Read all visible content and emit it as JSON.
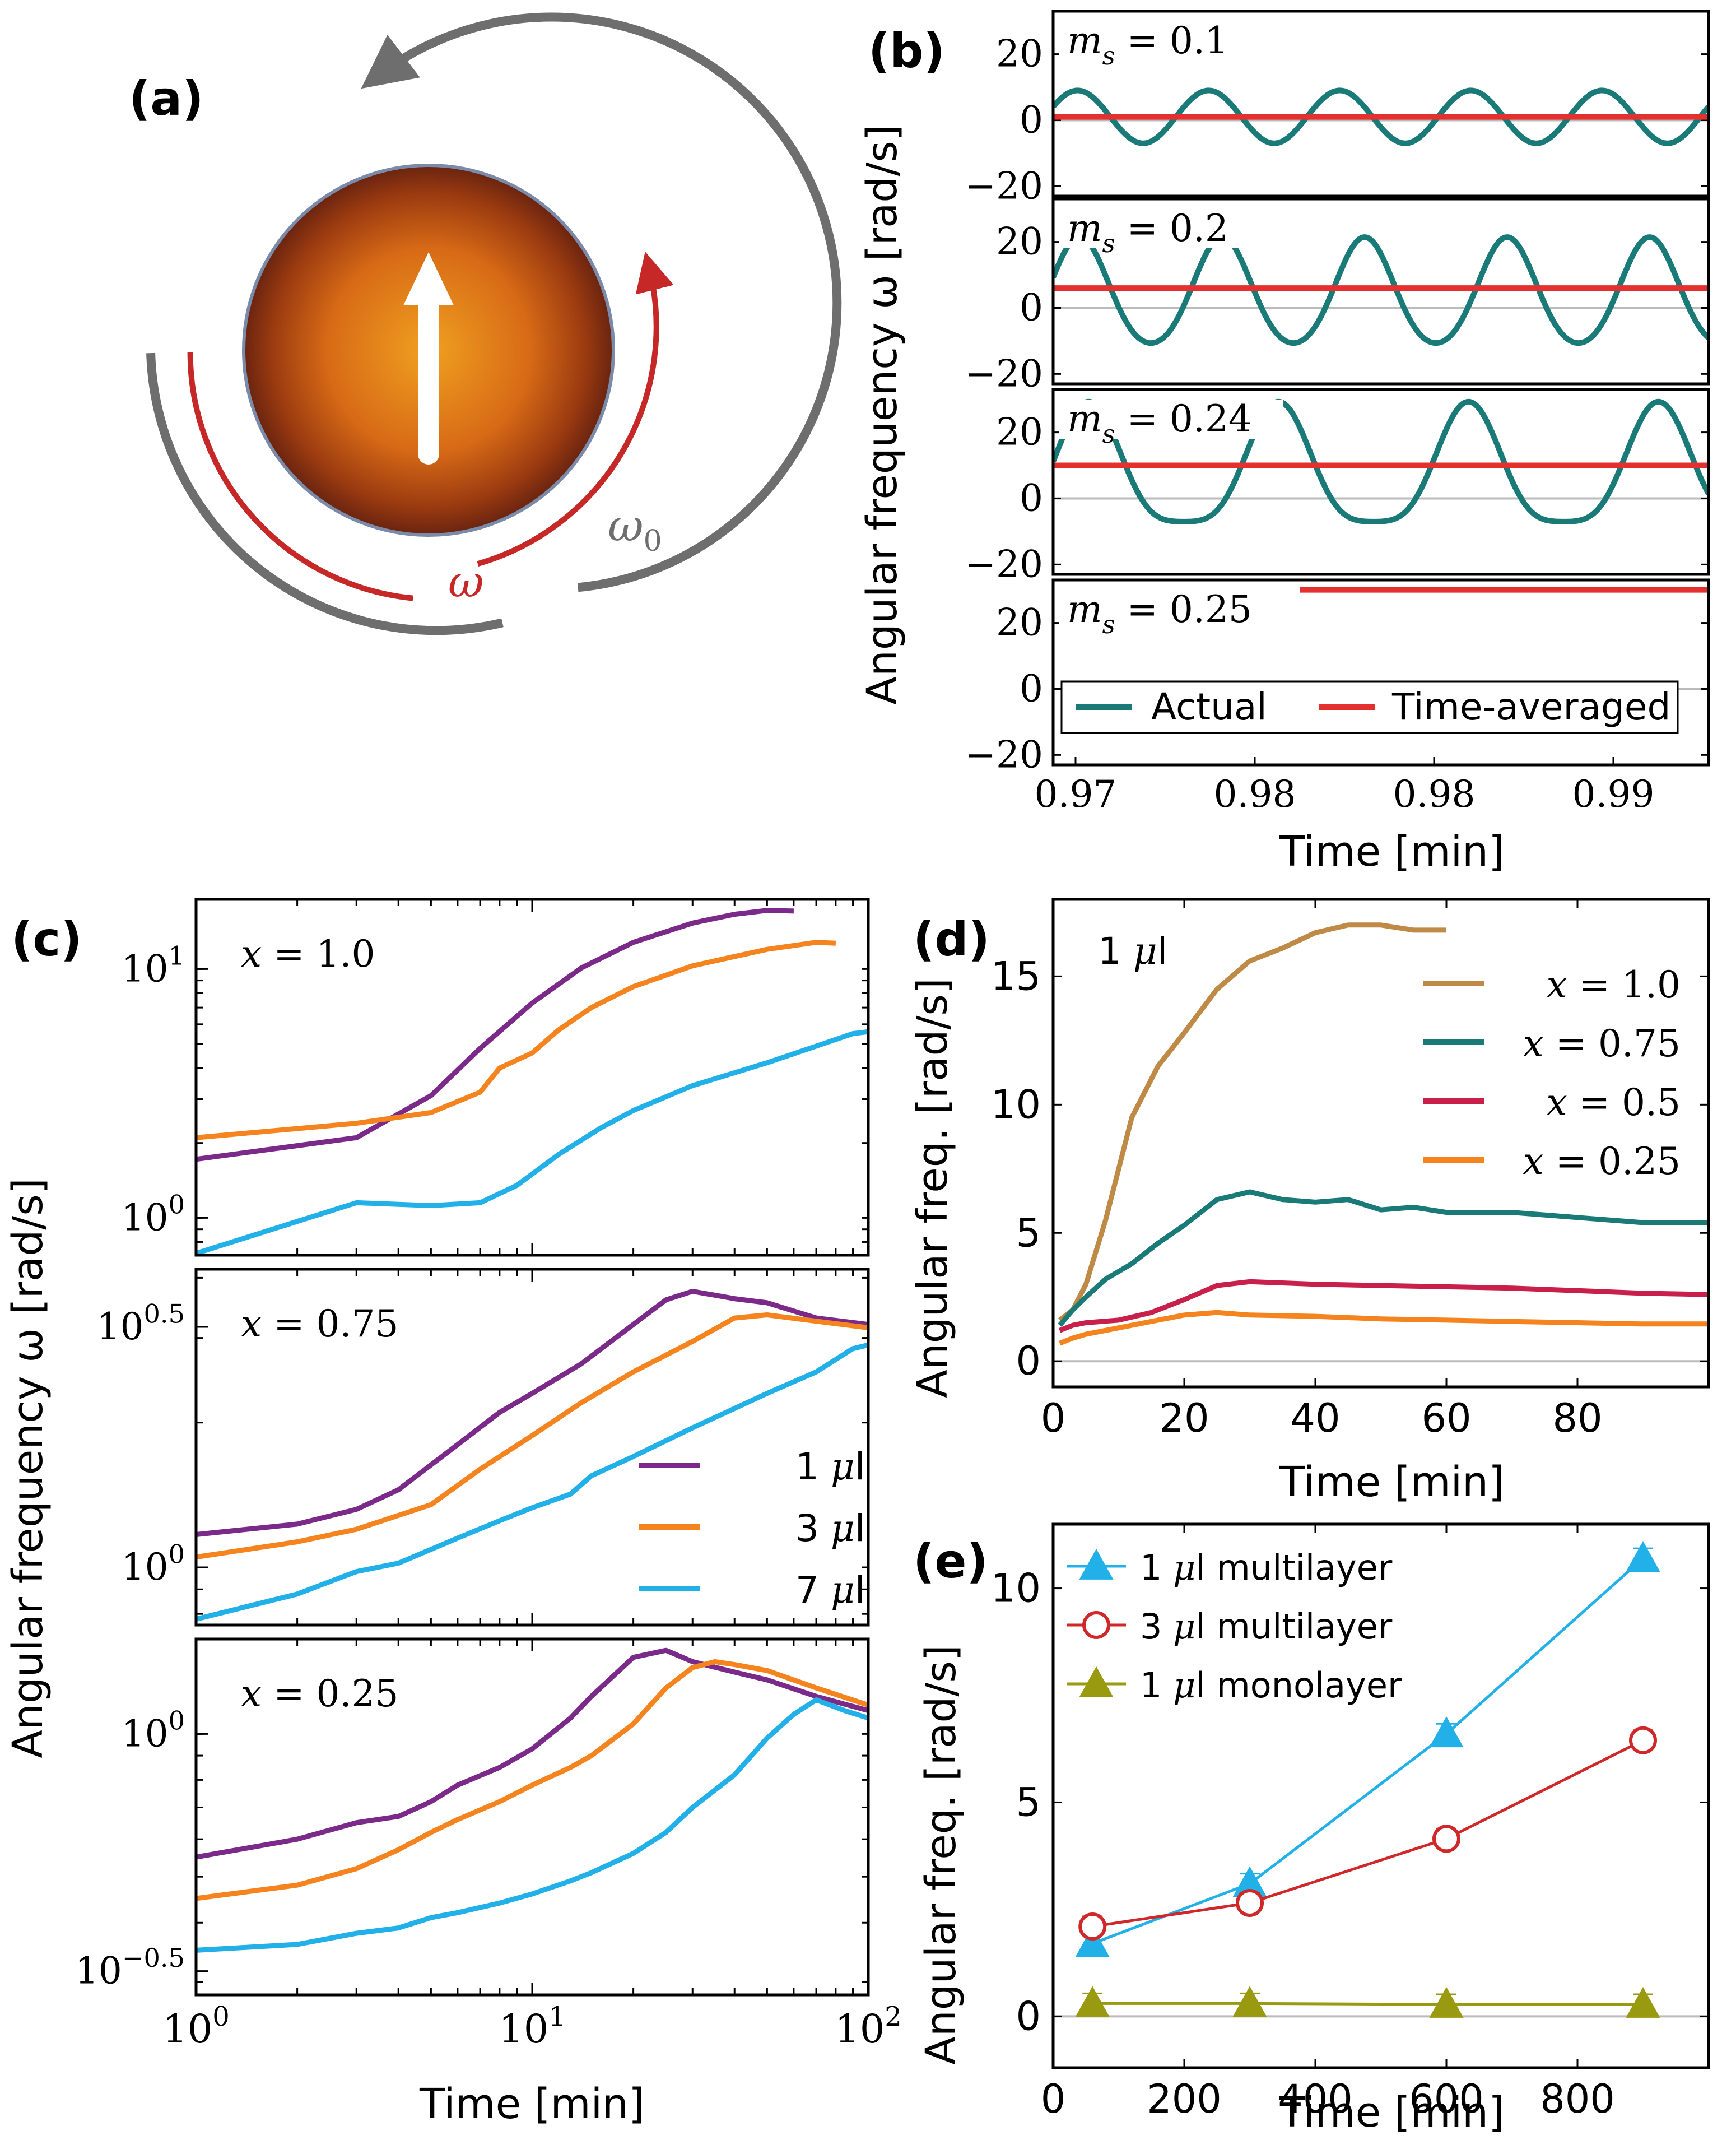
{
  "figure": {
    "panel_labels": {
      "a": "(a)",
      "b": "(b)",
      "c": "(c)",
      "d": "(d)",
      "e": "(e)"
    }
  },
  "panel_a": {
    "omega_label": "ω",
    "omega0_label": "ω",
    "omega0_sub": "0",
    "colors": {
      "omega": "#c62828",
      "omega0": "#6e6e6e",
      "droplet_center": "#f0a020",
      "droplet_edge": "#6a2410"
    }
  },
  "chart_data": [
    {
      "id": "b",
      "type": "line",
      "ylabel": "Angular frequency ω [rad/s]",
      "xlabel": "Time [min]",
      "x_tick_labels": [
        "0.97",
        "0.98",
        "0.98",
        "0.99"
      ],
      "y_ticks": [
        -20,
        0,
        20
      ],
      "y_tick_labels": [
        "−20",
        "0",
        "20"
      ],
      "ylim": [
        -23,
        33
      ],
      "legend": {
        "placement": "bottom",
        "entries": [
          "Actual",
          "Time-averaged"
        ]
      },
      "colors": {
        "actual": "#1a7a78",
        "average": "#e53030"
      },
      "subplots": [
        {
          "label": "m_s = 0.1",
          "ms": "0.1",
          "actual": {
            "mean": 1,
            "amp": 8,
            "sharp": 0,
            "periods": 5
          },
          "average": 1
        },
        {
          "label": "m_s = 0.2",
          "ms": "0.2",
          "actual": {
            "mean": 4,
            "amp": 17,
            "sharp": 0.5,
            "periods": 4.6
          },
          "average": 6
        },
        {
          "label": "m_s = 0.24",
          "ms": "0.24",
          "actual": {
            "mean": 7,
            "amp": 21,
            "sharp": 1.3,
            "periods": 3.45
          },
          "average": 10
        },
        {
          "label": "m_s = 0.25",
          "ms": "0.25",
          "actual": null,
          "average": 30
        }
      ]
    },
    {
      "id": "c",
      "type": "line",
      "scale": "log-log",
      "ylabel": "Angular frequency ω [rad/s]",
      "xlabel": "Time [min]",
      "xlim": [
        1,
        100
      ],
      "x_tick_labels": [
        {
          "base": "10",
          "exp": "0"
        },
        {
          "base": "10",
          "exp": "1"
        },
        {
          "base": "10",
          "exp": "2"
        }
      ],
      "legend": {
        "placement": "center-right",
        "entries": [
          "1 μl",
          "3 μl",
          "7 μl"
        ]
      },
      "colors": {
        "1ul": "#7b2a8a",
        "3ul": "#f5841f",
        "7ul": "#21b0e8"
      },
      "subplots": [
        {
          "label": "x = 1.0",
          "x_value": "1.0",
          "ylim_log10": [
            -0.15,
            1.28
          ],
          "y_tick_labels": [
            {
              "value": 0,
              "base": "10",
              "exp": "0"
            },
            {
              "value": 1,
              "base": "10",
              "exp": "1"
            }
          ],
          "series": [
            {
              "name": "1 μl",
              "x": [
                1,
                3,
                5,
                7,
                10,
                14,
                20,
                30,
                40,
                50,
                60
              ],
              "y": [
                1.72,
                2.1,
                3.1,
                4.8,
                7.3,
                10.1,
                12.8,
                15.3,
                16.6,
                17.2,
                17.1
              ]
            },
            {
              "name": "3 μl",
              "x": [
                1,
                3,
                5,
                7,
                8,
                10,
                12,
                15,
                20,
                30,
                50,
                70,
                80
              ],
              "y": [
                2.1,
                2.4,
                2.65,
                3.2,
                4,
                4.6,
                5.7,
                7,
                8.5,
                10.3,
                12,
                12.8,
                12.7
              ]
            },
            {
              "name": "7 μl",
              "x": [
                1,
                3,
                5,
                7,
                9,
                12,
                16,
                20,
                30,
                50,
                70,
                90,
                100
              ],
              "y": [
                0.72,
                1.15,
                1.12,
                1.15,
                1.35,
                1.8,
                2.3,
                2.7,
                3.4,
                4.2,
                4.9,
                5.5,
                5.6
              ]
            }
          ]
        },
        {
          "label": "x = 0.75",
          "x_value": "0.75",
          "ylim_log10": [
            -0.12,
            0.62
          ],
          "y_tick_labels": [
            {
              "value": 0,
              "base": "10",
              "exp": "0"
            },
            {
              "value": 0.5,
              "base": "10",
              "exp": "0.5"
            }
          ],
          "series": [
            {
              "name": "1 μl",
              "x": [
                1,
                2,
                3,
                4,
                6,
                8,
                10,
                14,
                20,
                25,
                30,
                40,
                50,
                70,
                100
              ],
              "y": [
                1.17,
                1.23,
                1.32,
                1.45,
                1.8,
                2.1,
                2.3,
                2.65,
                3.2,
                3.6,
                3.75,
                3.62,
                3.55,
                3.3,
                3.2
              ]
            },
            {
              "name": "3 μl",
              "x": [
                1,
                2,
                3,
                5,
                7,
                10,
                14,
                20,
                30,
                40,
                50,
                70,
                100
              ],
              "y": [
                1.05,
                1.13,
                1.2,
                1.35,
                1.6,
                1.88,
                2.2,
                2.55,
                2.95,
                3.3,
                3.35,
                3.25,
                3.15
              ]
            },
            {
              "name": "7 μl",
              "x": [
                1,
                2,
                3,
                4,
                6,
                8,
                10,
                13,
                15,
                20,
                30,
                50,
                70,
                90,
                100
              ],
              "y": [
                0.78,
                0.88,
                0.98,
                1.02,
                1.15,
                1.25,
                1.33,
                1.42,
                1.55,
                1.7,
                1.95,
                2.3,
                2.55,
                2.85,
                2.9
              ]
            }
          ]
        },
        {
          "label": "x = 0.25",
          "x_value": "0.25",
          "ylim_log10": [
            -0.55,
            0.2
          ],
          "y_tick_labels": [
            {
              "value": 0,
              "base": "10",
              "exp": "0"
            },
            {
              "value": -0.5,
              "base": "10",
              "exp": "−0.5"
            }
          ],
          "series": [
            {
              "name": "1 μl",
              "x": [
                1,
                2,
                3,
                4,
                5,
                6,
                8,
                10,
                13,
                15,
                20,
                25,
                30,
                40,
                50,
                70,
                100
              ],
              "y": [
                0.55,
                0.6,
                0.65,
                0.67,
                0.72,
                0.78,
                0.85,
                0.93,
                1.08,
                1.2,
                1.45,
                1.5,
                1.42,
                1.35,
                1.3,
                1.2,
                1.12
              ]
            },
            {
              "name": "3 μl",
              "x": [
                1,
                2,
                3,
                4,
                5,
                6,
                8,
                10,
                13,
                15,
                20,
                25,
                30,
                35,
                40,
                50,
                70,
                100
              ],
              "y": [
                0.45,
                0.48,
                0.52,
                0.57,
                0.62,
                0.66,
                0.72,
                0.78,
                0.85,
                0.9,
                1.05,
                1.25,
                1.38,
                1.42,
                1.4,
                1.36,
                1.25,
                1.15
              ]
            },
            {
              "name": "7 μl",
              "x": [
                1,
                2,
                3,
                4,
                5,
                6,
                8,
                10,
                13,
                15,
                20,
                25,
                30,
                40,
                50,
                60,
                70,
                85,
                100
              ],
              "y": [
                0.35,
                0.36,
                0.38,
                0.39,
                0.41,
                0.42,
                0.44,
                0.46,
                0.49,
                0.51,
                0.56,
                0.62,
                0.7,
                0.82,
                0.98,
                1.1,
                1.18,
                1.12,
                1.08
              ]
            }
          ]
        }
      ]
    },
    {
      "id": "d",
      "type": "line",
      "annotation": "1 μl",
      "ylabel": "Angular freq. [rad/s]",
      "xlabel": "Time [min]",
      "xlim": [
        0,
        100
      ],
      "ylim": [
        -1,
        18
      ],
      "x_ticks": [
        0,
        20,
        40,
        60,
        80
      ],
      "y_ticks": [
        0,
        5,
        10,
        15
      ],
      "legend": {
        "placement": "top-right",
        "entries": [
          "x = 1.0",
          "x = 0.75",
          "x = 0.5",
          "x = 0.25"
        ]
      },
      "series": [
        {
          "name": "x = 1.0",
          "x_value": "1.0",
          "color": "#bf8a45",
          "x": [
            1,
            3,
            5,
            8,
            12,
            16,
            20,
            25,
            30,
            35,
            40,
            45,
            50,
            55,
            60
          ],
          "y": [
            1.6,
            2,
            3,
            5.5,
            9.5,
            11.5,
            12.8,
            14.5,
            15.6,
            16.1,
            16.7,
            17,
            17,
            16.8,
            16.8
          ]
        },
        {
          "name": "x = 0.75",
          "x_value": "0.75",
          "color": "#1a7a78",
          "x": [
            1,
            3,
            5,
            8,
            12,
            16,
            20,
            25,
            30,
            35,
            40,
            45,
            50,
            55,
            60,
            70,
            80,
            90,
            100
          ],
          "y": [
            1.4,
            2,
            2.5,
            3.2,
            3.8,
            4.6,
            5.3,
            6.3,
            6.6,
            6.3,
            6.2,
            6.3,
            5.9,
            6,
            5.8,
            5.8,
            5.6,
            5.4,
            5.4
          ]
        },
        {
          "name": "x = 0.5",
          "x_value": "0.5",
          "color": "#c8204a",
          "x": [
            1,
            3,
            5,
            10,
            15,
            20,
            25,
            30,
            40,
            50,
            60,
            70,
            80,
            90,
            100
          ],
          "y": [
            1.2,
            1.4,
            1.5,
            1.6,
            1.9,
            2.4,
            2.95,
            3.1,
            3,
            2.95,
            2.9,
            2.85,
            2.75,
            2.65,
            2.6
          ]
        },
        {
          "name": "x = 0.25",
          "x_value": "0.25",
          "color": "#f5841f",
          "x": [
            1,
            3,
            5,
            10,
            15,
            20,
            25,
            30,
            40,
            50,
            60,
            70,
            80,
            90,
            100
          ],
          "y": [
            0.7,
            0.9,
            1.05,
            1.3,
            1.55,
            1.8,
            1.9,
            1.8,
            1.75,
            1.65,
            1.6,
            1.55,
            1.5,
            1.45,
            1.45
          ]
        }
      ]
    },
    {
      "id": "e",
      "type": "line",
      "ylabel": "Angular freq. [rad/s]",
      "xlabel": "Time [min]",
      "xlim": [
        0,
        1000
      ],
      "ylim": [
        -1.2,
        11.5
      ],
      "x_ticks": [
        0,
        200,
        400,
        600,
        800
      ],
      "y_ticks": [
        0,
        5,
        10
      ],
      "legend": {
        "placement": "top-left",
        "entries": [
          "1 μl multilayer",
          "3 μl multilayer",
          "1 μl monolayer"
        ]
      },
      "series": [
        {
          "name": "1 μl multilayer",
          "color": "#21b0e8",
          "marker": "filled-triangle",
          "x": [
            60,
            300,
            600,
            900
          ],
          "y": [
            1.7,
            3.1,
            6.6,
            10.7
          ]
        },
        {
          "name": "3 μl multilayer",
          "color": "#d02828",
          "marker": "open-circle",
          "x": [
            60,
            300,
            600,
            900
          ],
          "y": [
            2.1,
            2.65,
            4.15,
            6.45
          ]
        },
        {
          "name": "1 μl monolayer",
          "color": "#9a9a10",
          "marker": "filled-triangle",
          "x": [
            60,
            300,
            600,
            900
          ],
          "y": [
            0.3,
            0.3,
            0.28,
            0.28
          ]
        }
      ]
    }
  ]
}
